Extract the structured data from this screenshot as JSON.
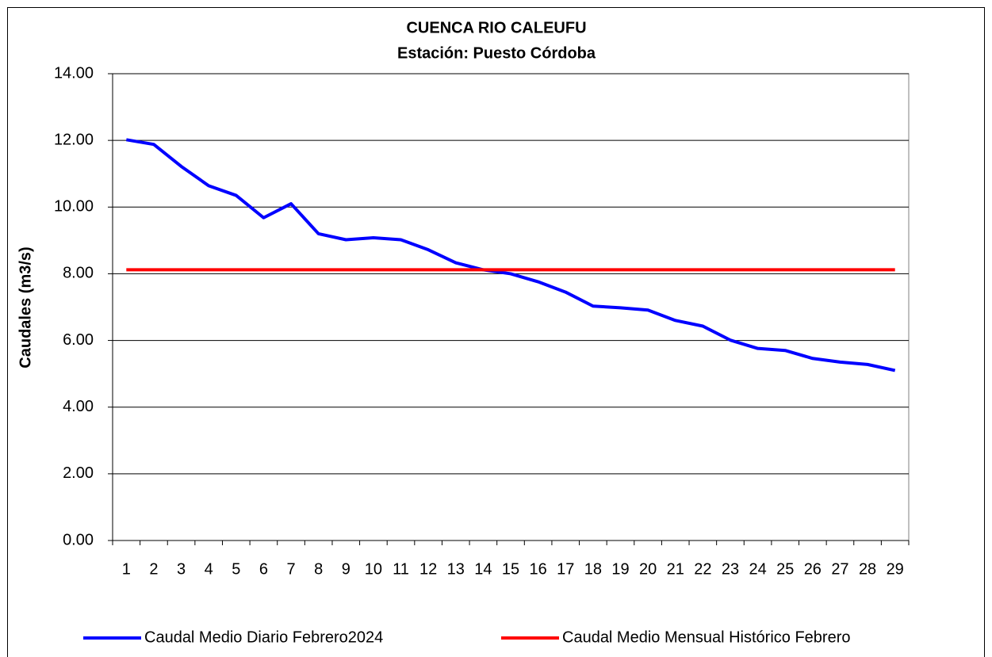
{
  "chart_data": {
    "type": "line",
    "title": "CUENCA RIO CALEUFU",
    "subtitle": "Estación: Puesto Córdoba",
    "y_label": "Caudales (m3/s)",
    "categories": [
      "1",
      "2",
      "3",
      "4",
      "5",
      "6",
      "7",
      "8",
      "9",
      "10",
      "11",
      "12",
      "13",
      "14",
      "15",
      "16",
      "17",
      "18",
      "19",
      "20",
      "21",
      "22",
      "23",
      "24",
      "25",
      "26",
      "27",
      "28",
      "29"
    ],
    "series": [
      {
        "name": "Caudal Medio Diario Febrero2024",
        "color": "#0000ff",
        "values": [
          12.02,
          11.88,
          11.22,
          10.64,
          10.35,
          9.68,
          10.1,
          9.2,
          9.02,
          9.08,
          9.02,
          8.72,
          8.33,
          8.12,
          8.0,
          7.76,
          7.45,
          7.03,
          6.98,
          6.91,
          6.6,
          6.43,
          6.01,
          5.76,
          5.7,
          5.46,
          5.35,
          5.28,
          5.1
        ]
      },
      {
        "name": "Caudal Medio Mensual Histórico Febrero",
        "color": "#ff0000",
        "values": [
          8.12,
          8.12,
          8.12,
          8.12,
          8.12,
          8.12,
          8.12,
          8.12,
          8.12,
          8.12,
          8.12,
          8.12,
          8.12,
          8.12,
          8.12,
          8.12,
          8.12,
          8.12,
          8.12,
          8.12,
          8.12,
          8.12,
          8.12,
          8.12,
          8.12,
          8.12,
          8.12,
          8.12,
          8.12
        ]
      }
    ],
    "ylim": [
      0,
      14
    ],
    "yticks": [
      {
        "value": 0,
        "label": "0.00"
      },
      {
        "value": 2,
        "label": "2.00"
      },
      {
        "value": 4,
        "label": "4.00"
      },
      {
        "value": 6,
        "label": "6.00"
      },
      {
        "value": 8,
        "label": "8.00"
      },
      {
        "value": 10,
        "label": "10.00"
      },
      {
        "value": 12,
        "label": "12.00"
      },
      {
        "value": 14,
        "label": "14.00"
      }
    ],
    "grid": true,
    "legend": "bottom"
  }
}
